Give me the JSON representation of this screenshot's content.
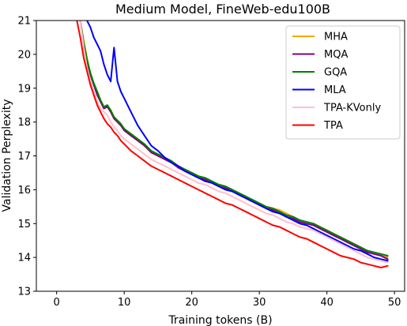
{
  "chart_data": {
    "type": "line",
    "title": "Medium Model, FineWeb-edu100B",
    "xlabel": "Training tokens (B)",
    "ylabel": "Validation Perplexity",
    "xlim": [
      -3,
      51.5
    ],
    "ylim": [
      13,
      21
    ],
    "xticks": [
      0,
      10,
      20,
      30,
      40,
      50
    ],
    "yticks": [
      13,
      14,
      15,
      16,
      17,
      18,
      19,
      20,
      21
    ],
    "grid": false,
    "legend_position": "top-right",
    "series": [
      {
        "name": "MHA",
        "color": "#ffa500",
        "x": [
          3.5,
          4,
          4.5,
          5,
          5.5,
          6,
          6.5,
          7,
          7.5,
          8,
          8.5,
          9,
          9.5,
          10,
          11,
          12,
          13,
          14,
          15,
          16,
          17,
          18,
          19,
          20,
          21,
          22,
          23,
          24,
          25,
          26,
          27,
          28,
          29,
          30,
          31,
          32,
          33,
          34,
          35,
          36,
          37,
          38,
          39,
          40,
          41,
          42,
          43,
          44,
          45,
          46,
          47,
          48,
          49
        ],
        "y": [
          21.0,
          20.4,
          19.9,
          19.4,
          19.1,
          18.9,
          18.6,
          18.4,
          18.5,
          18.3,
          18.1,
          18.0,
          17.9,
          17.8,
          17.6,
          17.5,
          17.3,
          17.1,
          17.0,
          16.9,
          16.8,
          16.7,
          16.6,
          16.5,
          16.4,
          16.3,
          16.2,
          16.15,
          16.1,
          16.0,
          15.9,
          15.8,
          15.7,
          15.6,
          15.5,
          15.45,
          15.4,
          15.3,
          15.2,
          15.1,
          15.05,
          15.0,
          14.9,
          14.8,
          14.7,
          14.6,
          14.5,
          14.4,
          14.3,
          14.2,
          14.15,
          14.1,
          14.0
        ]
      },
      {
        "name": "MQA",
        "color": "#800080",
        "x": [
          3.5,
          4,
          4.5,
          5,
          5.5,
          6,
          6.5,
          7,
          7.5,
          8,
          8.5,
          9,
          9.5,
          10,
          11,
          12,
          13,
          14,
          15,
          16,
          17,
          18,
          19,
          20,
          21,
          22,
          23,
          24,
          25,
          26,
          27,
          28,
          29,
          30,
          31,
          32,
          33,
          34,
          35,
          36,
          37,
          38,
          39,
          40,
          41,
          42,
          43,
          44,
          45,
          46,
          47,
          48,
          49
        ],
        "y": [
          21.0,
          20.3,
          19.8,
          19.4,
          19.1,
          18.8,
          18.6,
          18.4,
          18.45,
          18.3,
          18.1,
          18.0,
          17.9,
          17.75,
          17.6,
          17.45,
          17.3,
          17.1,
          17.0,
          16.9,
          16.8,
          16.65,
          16.55,
          16.45,
          16.35,
          16.3,
          16.2,
          16.1,
          16.05,
          15.95,
          15.85,
          15.75,
          15.65,
          15.55,
          15.45,
          15.4,
          15.3,
          15.2,
          15.15,
          15.05,
          15.0,
          14.95,
          14.85,
          14.75,
          14.65,
          14.55,
          14.45,
          14.35,
          14.25,
          14.15,
          14.1,
          14.05,
          13.95
        ]
      },
      {
        "name": "GQA",
        "color": "#008000",
        "x": [
          3.5,
          4,
          4.5,
          5,
          5.5,
          6,
          6.5,
          7,
          7.5,
          8,
          8.5,
          9,
          9.5,
          10,
          11,
          12,
          13,
          14,
          15,
          16,
          17,
          18,
          19,
          20,
          21,
          22,
          23,
          24,
          25,
          26,
          27,
          28,
          29,
          30,
          31,
          32,
          33,
          34,
          35,
          36,
          37,
          38,
          39,
          40,
          41,
          42,
          43,
          44,
          45,
          46,
          47,
          48,
          49
        ],
        "y": [
          21.0,
          20.35,
          19.85,
          19.45,
          19.15,
          18.9,
          18.65,
          18.45,
          18.5,
          18.35,
          18.15,
          18.05,
          17.95,
          17.8,
          17.65,
          17.5,
          17.35,
          17.15,
          17.05,
          16.95,
          16.85,
          16.7,
          16.6,
          16.5,
          16.4,
          16.35,
          16.25,
          16.15,
          16.1,
          16.0,
          15.9,
          15.8,
          15.7,
          15.6,
          15.5,
          15.45,
          15.35,
          15.25,
          15.2,
          15.1,
          15.05,
          15.0,
          14.9,
          14.8,
          14.7,
          14.6,
          14.5,
          14.4,
          14.3,
          14.2,
          14.15,
          14.1,
          14.05
        ]
      },
      {
        "name": "MLA",
        "color": "#0000ff",
        "x": [
          4.5,
          5,
          5.5,
          6,
          6.5,
          7,
          7.5,
          8,
          8.5,
          9,
          9.5,
          10,
          11,
          12,
          13,
          14,
          15,
          16,
          17,
          18,
          19,
          20,
          21,
          22,
          23,
          24,
          25,
          26,
          27,
          28,
          29,
          30,
          31,
          32,
          33,
          34,
          35,
          36,
          37,
          38,
          39,
          40,
          41,
          42,
          43,
          44,
          45,
          46,
          47,
          48,
          49
        ],
        "y": [
          21.0,
          20.8,
          20.5,
          20.3,
          20.1,
          19.7,
          19.4,
          19.2,
          20.2,
          19.2,
          18.9,
          18.7,
          18.3,
          17.9,
          17.6,
          17.3,
          17.15,
          16.95,
          16.8,
          16.7,
          16.55,
          16.45,
          16.35,
          16.25,
          16.2,
          16.1,
          16.0,
          15.95,
          15.85,
          15.75,
          15.65,
          15.55,
          15.45,
          15.35,
          15.3,
          15.2,
          15.1,
          15.0,
          14.95,
          14.85,
          14.75,
          14.65,
          14.55,
          14.45,
          14.35,
          14.25,
          14.2,
          14.1,
          14.0,
          13.95,
          13.9
        ]
      },
      {
        "name": "TPA-KVonly",
        "color": "#ffc0cb",
        "x": [
          3.5,
          4,
          4.5,
          5,
          5.5,
          6,
          6.5,
          7,
          7.5,
          8,
          8.5,
          9,
          9.5,
          10,
          11,
          12,
          13,
          14,
          15,
          16,
          17,
          18,
          19,
          20,
          21,
          22,
          23,
          24,
          25,
          26,
          27,
          28,
          29,
          30,
          31,
          32,
          33,
          34,
          35,
          36,
          37,
          38,
          39,
          40,
          41,
          42,
          43,
          44,
          45,
          46,
          47,
          48,
          49
        ],
        "y": [
          21.0,
          20.2,
          19.6,
          19.2,
          18.9,
          18.6,
          18.4,
          18.3,
          18.2,
          18.0,
          17.85,
          17.75,
          17.6,
          17.5,
          17.35,
          17.2,
          17.05,
          16.9,
          16.8,
          16.7,
          16.6,
          16.5,
          16.4,
          16.3,
          16.2,
          16.15,
          16.05,
          15.95,
          15.9,
          15.8,
          15.7,
          15.6,
          15.5,
          15.4,
          15.3,
          15.25,
          15.15,
          15.05,
          15.0,
          14.9,
          14.85,
          14.8,
          14.7,
          14.6,
          14.5,
          14.4,
          14.3,
          14.2,
          14.1,
          14.0,
          13.95,
          13.9,
          13.85
        ]
      },
      {
        "name": "TPA",
        "color": "#ff0000",
        "x": [
          3,
          3.5,
          4,
          4.5,
          5,
          5.5,
          6,
          6.5,
          7,
          7.5,
          8,
          8.5,
          9,
          9.5,
          10,
          11,
          12,
          13,
          14,
          15,
          16,
          17,
          18,
          19,
          20,
          21,
          22,
          23,
          24,
          25,
          26,
          27,
          28,
          29,
          30,
          31,
          32,
          33,
          34,
          35,
          36,
          37,
          38,
          39,
          40,
          41,
          42,
          43,
          44,
          45,
          46,
          47,
          48,
          49
        ],
        "y": [
          21.0,
          20.5,
          19.9,
          19.5,
          19.1,
          18.8,
          18.5,
          18.3,
          18.1,
          17.95,
          17.85,
          17.7,
          17.6,
          17.45,
          17.35,
          17.15,
          17.0,
          16.85,
          16.7,
          16.6,
          16.5,
          16.4,
          16.3,
          16.2,
          16.1,
          16.0,
          15.9,
          15.8,
          15.7,
          15.6,
          15.55,
          15.45,
          15.35,
          15.25,
          15.15,
          15.05,
          14.95,
          14.9,
          14.8,
          14.7,
          14.6,
          14.55,
          14.45,
          14.35,
          14.25,
          14.15,
          14.05,
          14.0,
          13.95,
          13.85,
          13.8,
          13.75,
          13.7,
          13.75
        ]
      }
    ]
  }
}
